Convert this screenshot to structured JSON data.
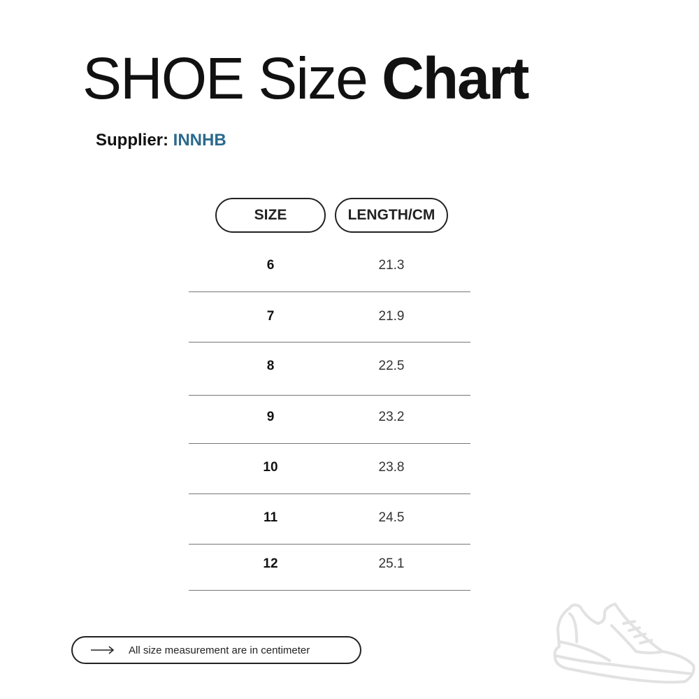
{
  "title": {
    "light": "SHOE Size ",
    "bold": "Chart"
  },
  "supplier": {
    "label": "Supplier: ",
    "name": "INNHB",
    "name_color": "#2b6a8d"
  },
  "table": {
    "headers": [
      "SIZE",
      "LENGTH/CM"
    ],
    "rows": [
      {
        "size": "6",
        "length": "21.3"
      },
      {
        "size": "7",
        "length": "21.9"
      },
      {
        "size": "8",
        "length": "22.5"
      },
      {
        "size": "9",
        "length": "23.2"
      },
      {
        "size": "10",
        "length": "23.8"
      },
      {
        "size": "11",
        "length": "24.5"
      },
      {
        "size": "12",
        "length": "25.1"
      }
    ]
  },
  "note": {
    "icon": "arrow-right-icon",
    "text": "All size measurement are in centimeter"
  },
  "decoration": {
    "icon": "sneaker-icon"
  }
}
